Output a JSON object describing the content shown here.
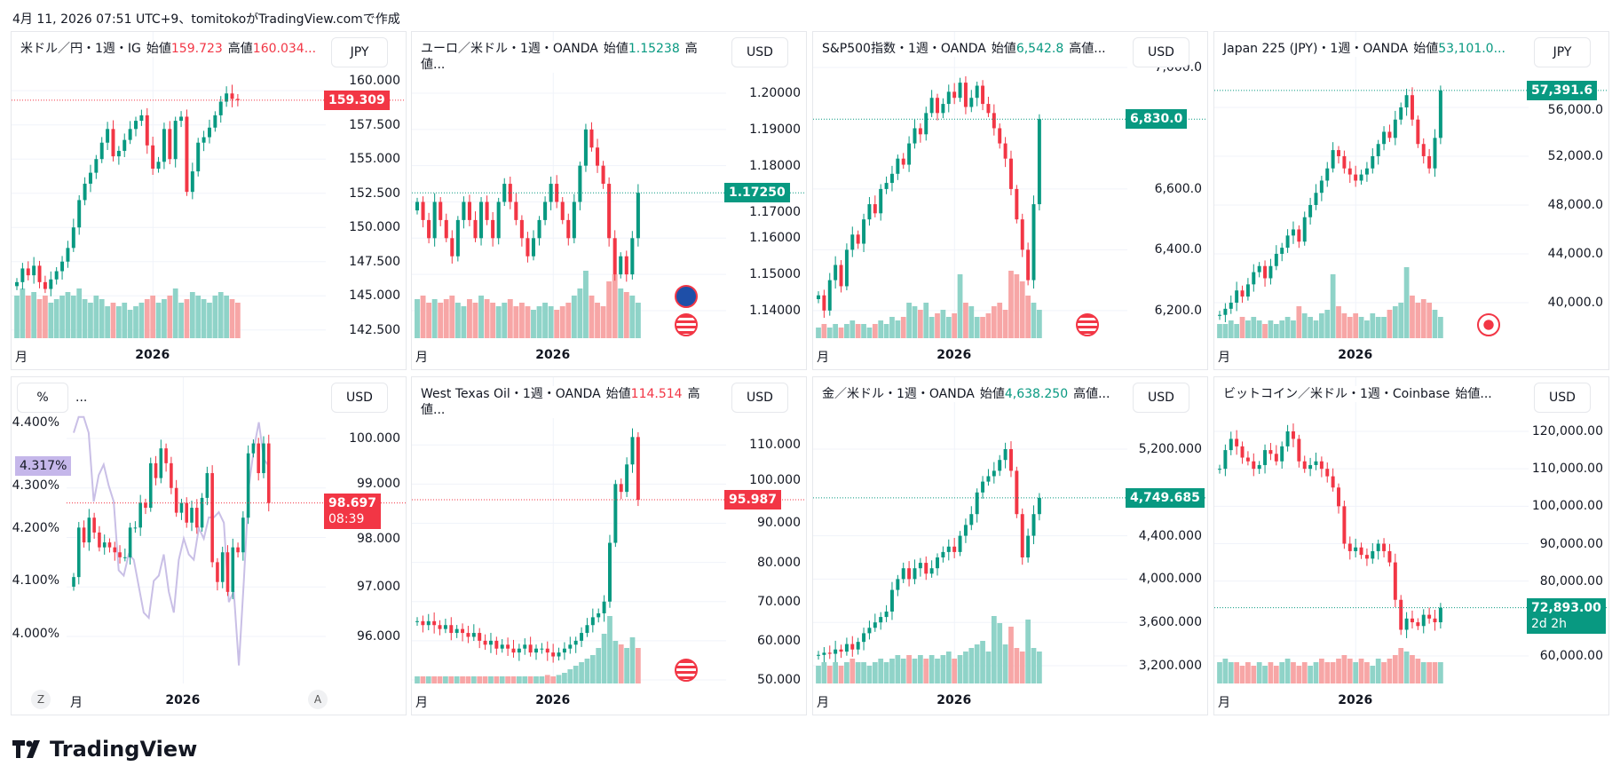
{
  "caption": "4月 11, 2026 07:51 UTC+9、tomitokoがTradingView.comで作成",
  "logo": "TradingView",
  "colors": {
    "up": "#089981",
    "down": "#f23645",
    "up_vol": "#8fd3c8",
    "down_vol": "#f7a6a6",
    "line": "#c9bfe6",
    "label_line": "#c5b7ea"
  },
  "x_labels": {
    "month": "月",
    "year": "2026"
  },
  "panels": [
    {
      "title": "米ドル／円・1週・IG",
      "open_label": "始値",
      "open": "159.723",
      "high_label": "高値",
      "high": "160.034...",
      "open_color": "#f23645",
      "high_color": "#f23645",
      "currency": "JPY",
      "last": "159.309",
      "last_color": "#f23645",
      "ticks": [
        "160.000",
        "157.500",
        "155.000",
        "152.500",
        "150.000",
        "147.500",
        "145.000",
        "142.500"
      ],
      "chart_data": {
        "type": "candlestick",
        "yrange": [
          141.9,
          161.7
        ],
        "tick_values": [
          160,
          157.5,
          155,
          152.5,
          150,
          147.5,
          145,
          142.5
        ],
        "closes": [
          146,
          147,
          146.5,
          147.2,
          146,
          145.5,
          146.2,
          146.8,
          147.5,
          148.5,
          150,
          152,
          153.2,
          154,
          155,
          156.2,
          157.2,
          155.2,
          155.6,
          156.4,
          157.2,
          157.8,
          158.2,
          156,
          154.3,
          154.8,
          157.2,
          155,
          157.8,
          158.1,
          152.6,
          154.1,
          156.2,
          156.6,
          157.3,
          158.2,
          159.2,
          159.8,
          159.4,
          159.309
        ],
        "volumes": [
          0.6,
          0.7,
          0.6,
          0.65,
          0.55,
          0.6,
          0.5,
          0.55,
          0.6,
          0.65,
          0.6,
          0.7,
          0.55,
          0.5,
          0.6,
          0.55,
          0.45,
          0.5,
          0.45,
          0.5,
          0.4,
          0.45,
          0.5,
          0.55,
          0.6,
          0.5,
          0.55,
          0.6,
          0.7,
          0.5,
          0.55,
          0.65,
          0.6,
          0.55,
          0.5,
          0.6,
          0.65,
          0.6,
          0.55,
          0.5
        ]
      },
      "flags": []
    },
    {
      "title": "ユーロ／米ドル・1週・OANDA",
      "open_label": "始値",
      "open": "1.15238",
      "high_label": "高値...",
      "high": "",
      "open_color": "#089981",
      "high_color": "#089981",
      "currency": "USD",
      "last": "1.17250",
      "last_color": "#089981",
      "ticks": [
        "1.20000",
        "1.19000",
        "1.18000",
        "1.17000",
        "1.16000",
        "1.15000",
        "1.14000"
      ],
      "chart_data": {
        "type": "candlestick",
        "yrange": [
          1.1324,
          1.2071
        ],
        "tick_values": [
          1.2,
          1.19,
          1.18,
          1.17,
          1.16,
          1.15,
          1.14
        ],
        "closes": [
          1.17,
          1.165,
          1.16,
          1.17,
          1.165,
          1.16,
          1.155,
          1.165,
          1.17,
          1.165,
          1.16,
          1.17,
          1.165,
          1.16,
          1.17,
          1.175,
          1.17,
          1.165,
          1.16,
          1.155,
          1.16,
          1.165,
          1.17,
          1.175,
          1.17,
          1.165,
          1.16,
          1.17,
          1.18,
          1.19,
          1.185,
          1.18,
          1.175,
          1.16,
          1.15,
          1.155,
          1.15,
          1.16,
          1.1725
        ],
        "volumes": [
          0.55,
          0.6,
          0.5,
          0.55,
          0.5,
          0.55,
          0.6,
          0.5,
          0.45,
          0.55,
          0.5,
          0.6,
          0.55,
          0.5,
          0.45,
          0.5,
          0.55,
          0.45,
          0.5,
          0.45,
          0.4,
          0.45,
          0.5,
          0.45,
          0.4,
          0.45,
          0.5,
          0.6,
          0.7,
          0.95,
          0.6,
          0.5,
          0.45,
          0.8,
          0.9,
          0.7,
          0.65,
          0.6,
          0.5
        ]
      },
      "flags": [
        "eu",
        "us"
      ]
    },
    {
      "title": "S&P500指数・1週・OANDA",
      "open_label": "始値",
      "open": "6,542.8",
      "high_label": "高値...",
      "high": "",
      "open_color": "#089981",
      "high_color": "#089981",
      "currency": "USD",
      "last": "6,830.0",
      "last_color": "#089981",
      "ticks": [
        "7,000.0",
        "6,600.0",
        "6,400.0",
        "6,200.0"
      ],
      "chart_data": {
        "type": "candlestick",
        "yrange": [
          6109,
          7000
        ],
        "tick_values": [
          7000,
          6600,
          6400,
          6200
        ],
        "closes": [
          6250,
          6200,
          6300,
          6350,
          6280,
          6400,
          6450,
          6420,
          6500,
          6550,
          6520,
          6600,
          6620,
          6650,
          6700,
          6680,
          6750,
          6800,
          6780,
          6850,
          6900,
          6850,
          6880,
          6920,
          6900,
          6950,
          6870,
          6900,
          6940,
          6880,
          6850,
          6800,
          6750,
          6700,
          6600,
          6500,
          6400,
          6300,
          6550,
          6830
        ],
        "volumes": [
          0.15,
          0.2,
          0.15,
          0.2,
          0.15,
          0.2,
          0.25,
          0.2,
          0.2,
          0.15,
          0.2,
          0.25,
          0.2,
          0.3,
          0.25,
          0.3,
          0.5,
          0.45,
          0.4,
          0.5,
          0.3,
          0.35,
          0.4,
          0.3,
          0.35,
          0.9,
          0.5,
          0.45,
          0.3,
          0.3,
          0.35,
          0.45,
          0.5,
          0.4,
          0.95,
          0.9,
          0.8,
          0.6,
          0.5,
          0.4
        ]
      },
      "flags": [
        "us"
      ]
    },
    {
      "title": "Japan 225 (JPY)・1週・OANDA",
      "open_label": "始値",
      "open": "53,101.0...",
      "high_label": "",
      "high": "",
      "open_color": "#089981",
      "high_color": "#089981",
      "currency": "JPY",
      "last": "57,391.6",
      "last_color": "#089981",
      "ticks": [
        "56,000.0",
        "52,000.0",
        "48,000.0",
        "44,000.0",
        "40,000.0"
      ],
      "chart_data": {
        "type": "candlestick",
        "yrange": [
          37090,
          59270
        ],
        "tick_values": [
          56000,
          52000,
          48000,
          44000,
          40000
        ],
        "closes": [
          39000,
          39500,
          40000,
          41000,
          40500,
          41500,
          42500,
          43000,
          42000,
          43000,
          44000,
          44500,
          45500,
          46000,
          45000,
          47000,
          48000,
          49000,
          50000,
          51000,
          52500,
          52000,
          51000,
          50500,
          50000,
          50500,
          51000,
          52000,
          53000,
          54000,
          53500,
          55000,
          56000,
          57000,
          55000,
          53000,
          52000,
          51000,
          53500,
          57391
        ],
        "volumes": [
          0.2,
          0.2,
          0.25,
          0.2,
          0.3,
          0.25,
          0.3,
          0.25,
          0.2,
          0.25,
          0.2,
          0.25,
          0.3,
          0.25,
          0.45,
          0.35,
          0.3,
          0.25,
          0.35,
          0.4,
          0.9,
          0.45,
          0.35,
          0.3,
          0.35,
          0.3,
          0.25,
          0.35,
          0.3,
          0.3,
          0.4,
          0.45,
          0.5,
          1.0,
          0.6,
          0.5,
          0.55,
          0.5,
          0.4,
          0.3
        ]
      },
      "flags": [
        "jp"
      ]
    },
    {
      "title": "...",
      "left_currency": "%",
      "left_ticks": [
        "4.400%",
        "4.300%",
        "4.200%",
        "4.100%",
        "4.000%"
      ],
      "left_last": "4.317%",
      "currency": "USD",
      "last": "98.697",
      "last_sub": "08:39",
      "last_color": "#f23645",
      "ticks": [
        "100.000",
        "99.000",
        "98.000",
        "97.000",
        "96.000"
      ],
      "z_button": "Z",
      "a_button": "A",
      "chart_data": {
        "type": "candlestick+line",
        "yrange": [
          95.05,
          100.52
        ],
        "tick_values": [
          100,
          99,
          98,
          97,
          96
        ],
        "left_range": [
          3.906,
          4.418
        ],
        "left_tick_values": [
          4.4,
          4.3,
          4.2,
          4.1,
          4.0
        ],
        "closes": [
          97.2,
          98.2,
          97.9,
          98.4,
          98.1,
          97.8,
          97.9,
          97.8,
          97.7,
          97.6,
          97.6,
          98.2,
          98.2,
          98.7,
          98.6,
          99.5,
          99.2,
          99.8,
          99.5,
          99.0,
          98.5,
          98.7,
          98.3,
          98.6,
          98.2,
          98.8,
          99.3,
          97.5,
          97.1,
          97.7,
          96.9,
          97.8,
          97.7,
          98.4,
          99.7,
          99.9,
          99.3,
          99.9,
          98.697
        ],
        "line": [
          4.38,
          4.41,
          4.41,
          4.38,
          4.25,
          4.3,
          4.32,
          4.28,
          4.25,
          4.12,
          4.11,
          4.15,
          4.14,
          4.09,
          4.04,
          4.03,
          4.1,
          4.11,
          4.15,
          4.08,
          4.04,
          4.14,
          4.18,
          4.15,
          4.14,
          4.2,
          4.18,
          4.22,
          4.22,
          4.23,
          4.21,
          4.06,
          4.08,
          3.94,
          4.1,
          4.28,
          4.35,
          4.4,
          4.33,
          4.317
        ]
      },
      "flags": []
    },
    {
      "title": "West Texas Oil・1週・OANDA",
      "open_label": "始値",
      "open": "114.514",
      "high_label": "高値...",
      "high": "",
      "open_color": "#f23645",
      "high_color": "#f23645",
      "currency": "USD",
      "last": "95.987",
      "last_color": "#f23645",
      "ticks": [
        "110.000",
        "100.000",
        "90.000",
        "80.000",
        "70.000",
        "60.000",
        "50.000"
      ],
      "chart_data": {
        "type": "candlestick",
        "yrange": [
          49.1,
          118.2
        ],
        "tick_values": [
          110,
          100,
          90,
          80,
          70,
          60,
          50
        ],
        "closes": [
          65,
          64,
          65,
          64,
          63,
          64,
          62,
          63,
          62,
          61,
          62,
          60,
          59,
          60,
          58,
          59,
          58,
          57,
          58,
          59,
          57,
          58,
          58,
          57,
          56,
          57,
          58,
          59,
          60,
          62,
          64,
          66,
          67,
          70,
          85,
          100,
          98,
          105,
          112,
          95.987
        ],
        "volumes": [
          0.1,
          0.1,
          0.1,
          0.1,
          0.1,
          0.1,
          0.1,
          0.1,
          0.1,
          0.1,
          0.1,
          0.1,
          0.1,
          0.1,
          0.1,
          0.1,
          0.1,
          0.1,
          0.1,
          0.1,
          0.1,
          0.1,
          0.1,
          0.12,
          0.1,
          0.12,
          0.15,
          0.2,
          0.25,
          0.3,
          0.35,
          0.4,
          0.5,
          0.7,
          0.95,
          0.6,
          0.55,
          0.5,
          0.65,
          0.5
        ]
      },
      "flags": [
        "us"
      ]
    },
    {
      "title": "金／米ドル・1週・OANDA",
      "open_label": "始値",
      "open": "4,638.250",
      "high_label": "高値...",
      "high": "",
      "open_color": "#089981",
      "high_color": "#089981",
      "currency": "USD",
      "last": "4,749.685",
      "last_color": "#089981",
      "ticks": [
        "5,200.000",
        "4,400.000",
        "4,000.000",
        "3,600.000",
        "3,200.000"
      ],
      "chart_data": {
        "type": "candlestick",
        "yrange": [
          3036,
          5536
        ],
        "tick_values": [
          5200,
          4400,
          4000,
          3600,
          3200
        ],
        "closes": [
          3300,
          3320,
          3310,
          3350,
          3330,
          3400,
          3350,
          3420,
          3500,
          3550,
          3600,
          3650,
          3700,
          3900,
          4000,
          4100,
          4000,
          4100,
          4150,
          4050,
          4100,
          4200,
          4250,
          4300,
          4250,
          4400,
          4500,
          4600,
          4800,
          4900,
          4950,
          5000,
          5100,
          5200,
          5000,
          4600,
          4200,
          4400,
          4600,
          4749.685
        ],
        "volumes": [
          0.25,
          0.3,
          0.25,
          0.3,
          0.25,
          0.3,
          0.35,
          0.3,
          0.3,
          0.25,
          0.3,
          0.35,
          0.3,
          0.35,
          0.4,
          0.35,
          0.4,
          0.35,
          0.4,
          0.35,
          0.4,
          0.35,
          0.4,
          0.45,
          0.35,
          0.4,
          0.45,
          0.5,
          0.55,
          0.6,
          0.45,
          0.95,
          0.85,
          0.55,
          0.8,
          0.5,
          0.45,
          0.9,
          0.5,
          0.45
        ]
      },
      "flags": []
    },
    {
      "title": "ビットコイン／米ドル・1週・Coinbase",
      "open_label": "始値...",
      "open": "",
      "high_label": "",
      "high": "",
      "open_color": "#089981",
      "high_color": "#089981",
      "currency": "USD",
      "last": "72,893.00",
      "last_sub": "2d 2h",
      "last_color": "#089981",
      "ticks": [
        "120,000.00",
        "110,000.00",
        "100,000.00",
        "90,000.00",
        "80,000.00",
        "60,000.00"
      ],
      "chart_data": {
        "type": "candlestick",
        "yrange": [
          52650,
          124980
        ],
        "tick_values": [
          120000,
          110000,
          100000,
          90000,
          80000,
          60000
        ],
        "closes": [
          110000,
          115000,
          118000,
          116000,
          113000,
          112000,
          110000,
          111000,
          115000,
          114000,
          112000,
          116000,
          120000,
          118000,
          112000,
          110000,
          111000,
          112000,
          110000,
          108000,
          105000,
          100000,
          90000,
          88000,
          89000,
          87000,
          86000,
          88000,
          90000,
          88000,
          85000,
          75000,
          67000,
          70000,
          69000,
          68000,
          71000,
          70000,
          69000,
          72893
        ],
        "volumes": [
          0.3,
          0.35,
          0.3,
          0.3,
          0.25,
          0.3,
          0.25,
          0.3,
          0.25,
          0.3,
          0.25,
          0.3,
          0.35,
          0.3,
          0.25,
          0.3,
          0.25,
          0.3,
          0.35,
          0.3,
          0.3,
          0.35,
          0.4,
          0.35,
          0.3,
          0.35,
          0.3,
          0.25,
          0.35,
          0.3,
          0.35,
          0.4,
          0.5,
          0.45,
          0.4,
          0.35,
          0.3,
          0.3,
          0.3,
          0.3
        ]
      },
      "flags": []
    }
  ]
}
